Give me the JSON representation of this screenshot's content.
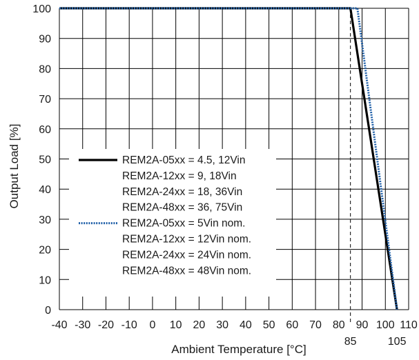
{
  "chart_data": {
    "type": "line",
    "xlabel": "Ambient Temperature [°C]",
    "ylabel": "Output Load [%]",
    "xlim": [
      -40,
      110
    ],
    "ylim": [
      0,
      100
    ],
    "grid": true,
    "legend_position": "left-middle",
    "x_ticks": [
      -40,
      -30,
      -20,
      -10,
      0,
      10,
      20,
      30,
      40,
      50,
      60,
      70,
      80,
      90,
      100,
      110
    ],
    "y_ticks": [
      0,
      10,
      20,
      30,
      40,
      50,
      60,
      70,
      80,
      90,
      100
    ],
    "x_ticks_extra": [
      85,
      105
    ],
    "x_tick_labels": [
      "-40",
      "-30",
      "-20",
      "-10",
      "0",
      "10",
      "20",
      "30",
      "40",
      "50",
      "60",
      "70",
      "80",
      "90",
      "100",
      "110"
    ],
    "x_tick_labels_extra": [
      "85",
      "105"
    ],
    "y_tick_labels": [
      "0",
      "10",
      "20",
      "30",
      "40",
      "50",
      "60",
      "70",
      "80",
      "90",
      "100"
    ],
    "reference_lines": [
      {
        "x": 85,
        "style": "dashed"
      }
    ],
    "series": [
      {
        "labels": [
          "REM2A-05xx = 4.5, 12Vin",
          "REM2A-12xx = 9, 18Vin",
          "REM2A-24xx = 18, 36Vin",
          "REM2A-48xx = 36, 75Vin"
        ],
        "color": "#000000",
        "style": "solid",
        "x": [
          -40,
          85,
          105
        ],
        "y": [
          100,
          100,
          0
        ]
      },
      {
        "labels": [
          "REM2A-05xx = 5Vin nom.",
          "REM2A-12xx = 12Vin nom.",
          "REM2A-24xx = 24Vin nom.",
          "REM2A-48xx = 48Vin nom."
        ],
        "color": "#1f5fa8",
        "style": "dotted",
        "x": [
          -40,
          88,
          105
        ],
        "y": [
          100,
          100,
          0
        ]
      }
    ]
  }
}
